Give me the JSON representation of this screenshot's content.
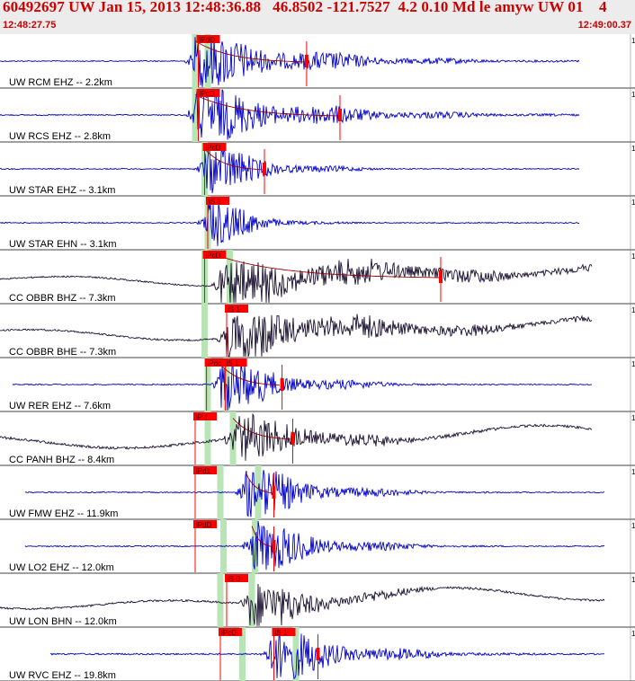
{
  "header": {
    "title": "60492697 UW Jan 15, 2013 12:48:36.88   46.8502 -121.7527  4.2 0.10 Md le amyw UW 01    4",
    "start_time": "12:48:27.75",
    "end_time": "12:49:00.37"
  },
  "colors": {
    "blue": "#0000cc",
    "black": "#1a1030",
    "pick": "#ff0000",
    "window": "#b9e4b5",
    "fit": "#990000"
  },
  "traces": [
    {
      "label": "UW RCM EHZ -- 2.2km",
      "color": "blue",
      "start_t": 0.0,
      "end_t": 0.92,
      "amp": 0.2,
      "onset_t": 0.31,
      "coda": 0.48,
      "windows": [
        [
          0.305,
          0.315
        ],
        [
          0.325,
          0.335
        ]
      ],
      "picks": [
        {
          "label": "iPdD",
          "t": 0.315
        },
        {
          "t": 0.487,
          "type": "end"
        }
      ],
      "fit": true
    },
    {
      "label": "UW RCS EHZ -- 2.8km",
      "color": "blue",
      "start_t": 0.0,
      "end_t": 0.92,
      "amp": 0.2,
      "onset_t": 0.31,
      "coda": 0.5,
      "windows": [
        [
          0.305,
          0.315
        ]
      ],
      "picks": [
        {
          "label": "iPcD",
          "t": 0.315
        },
        {
          "t": 0.54,
          "type": "end"
        }
      ],
      "fit": true
    },
    {
      "label": "UW STAR EHZ -- 3.1km",
      "color": "blue",
      "start_t": 0.0,
      "end_t": 0.92,
      "amp": 0.2,
      "onset_t": 0.325,
      "coda": 0.25,
      "windows": [
        [
          0.32,
          0.33
        ]
      ],
      "picks": [
        {
          "label": "iPcD",
          "t": 0.325
        },
        {
          "t": 0.42,
          "type": "end"
        }
      ],
      "fit": true
    },
    {
      "label": "UW STAR EHN -- 3.1km",
      "color": "blue",
      "start_t": 0.0,
      "end_t": 0.92,
      "amp": 0.2,
      "onset_t": 0.33,
      "coda": 0.18,
      "windows": [
        [
          0.325,
          0.335
        ]
      ],
      "picks": [
        {
          "label": "iS 1",
          "t": 0.33
        }
      ],
      "fit": false
    },
    {
      "label": "CC OBBR BHZ -- 7.3km",
      "color": "black",
      "start_t": 0.0,
      "end_t": 0.94,
      "amp": 0.3,
      "onset_t": 0.35,
      "coda": 0.8,
      "windows": [
        [
          0.32,
          0.33
        ],
        [
          0.36,
          0.37
        ]
      ],
      "picks": [
        {
          "label": "iPcD",
          "t": 0.325
        },
        {
          "t": 0.7,
          "type": "end"
        }
      ],
      "fit": true
    },
    {
      "label": "CC OBBR BHE -- 7.3km",
      "color": "black",
      "start_t": 0.0,
      "end_t": 0.94,
      "amp": 0.35,
      "onset_t": 0.36,
      "coda": 0.7,
      "windows": [
        [
          0.32,
          0.33
        ]
      ],
      "picks": [
        {
          "label": "iS 1",
          "t": 0.36
        }
      ],
      "fit": false
    },
    {
      "label": "UW RER EHZ -- 7.6km",
      "color": "blue",
      "start_t": 0.02,
      "end_t": 0.94,
      "amp": 0.2,
      "onset_t": 0.35,
      "coda": 0.3,
      "windows": [
        [
          0.325,
          0.335
        ],
        [
          0.355,
          0.365
        ]
      ],
      "picks": [
        {
          "label": "iPdc",
          "t": 0.328
        },
        {
          "label": "iS 1",
          "t": 0.358
        },
        {
          "t": 0.448,
          "type": "end"
        }
      ],
      "fit": true
    },
    {
      "label": "CC PANH BHZ -- 8.4km",
      "color": "black",
      "start_t": 0.0,
      "end_t": 0.94,
      "amp": 0.5,
      "onset_t": 0.37,
      "coda": 0.4,
      "windows": [
        [
          0.325,
          0.335
        ],
        [
          0.365,
          0.375
        ]
      ],
      "picks": [
        {
          "label": "iP 1",
          "t": 0.31
        },
        {
          "t": 0.465,
          "type": "end"
        }
      ],
      "fit": true
    },
    {
      "label": "UW FMW EHZ -- 11.9km",
      "color": "blue",
      "start_t": 0.04,
      "end_t": 0.96,
      "amp": 0.2,
      "onset_t": 0.39,
      "coda": 0.3,
      "windows": [
        [
          0.345,
          0.355
        ],
        [
          0.405,
          0.415
        ]
      ],
      "picks": [
        {
          "label": "iPd1",
          "t": 0.31
        },
        {
          "t": 0.435,
          "type": "end"
        }
      ],
      "fit": true
    },
    {
      "label": "UW LO2 EHZ -- 12.0km",
      "color": "blue",
      "start_t": 0.04,
      "end_t": 0.96,
      "amp": 0.2,
      "onset_t": 0.4,
      "coda": 0.3,
      "windows": [
        [
          0.35,
          0.36
        ],
        [
          0.4,
          0.41
        ]
      ],
      "picks": [
        {
          "label": "iPdD",
          "t": 0.31
        },
        {
          "t": 0.435,
          "type": "end"
        }
      ],
      "fit": true
    },
    {
      "label": "UW LON BHN -- 12.0km",
      "color": "black",
      "start_t": 0.0,
      "end_t": 0.96,
      "amp": 0.4,
      "onset_t": 0.395,
      "coda": 0.35,
      "windows": [
        [
          0.345,
          0.355
        ],
        [
          0.395,
          0.405
        ]
      ],
      "picks": [
        {
          "label": "iS 0",
          "t": 0.36
        }
      ],
      "fit": false
    },
    {
      "label": "UW RVC EHZ -- 19.8km",
      "color": "blue",
      "start_t": 0.08,
      "end_t": 0.96,
      "amp": 0.3,
      "onset_t": 0.43,
      "coda": 0.35,
      "windows": [
        [
          0.38,
          0.39
        ],
        [
          0.465,
          0.475
        ]
      ],
      "picks": [
        {
          "label": "iPcD",
          "t": 0.35
        },
        {
          "label": "iS 1",
          "t": 0.435
        },
        {
          "t": 0.505,
          "type": "end"
        }
      ],
      "fit": false
    }
  ]
}
